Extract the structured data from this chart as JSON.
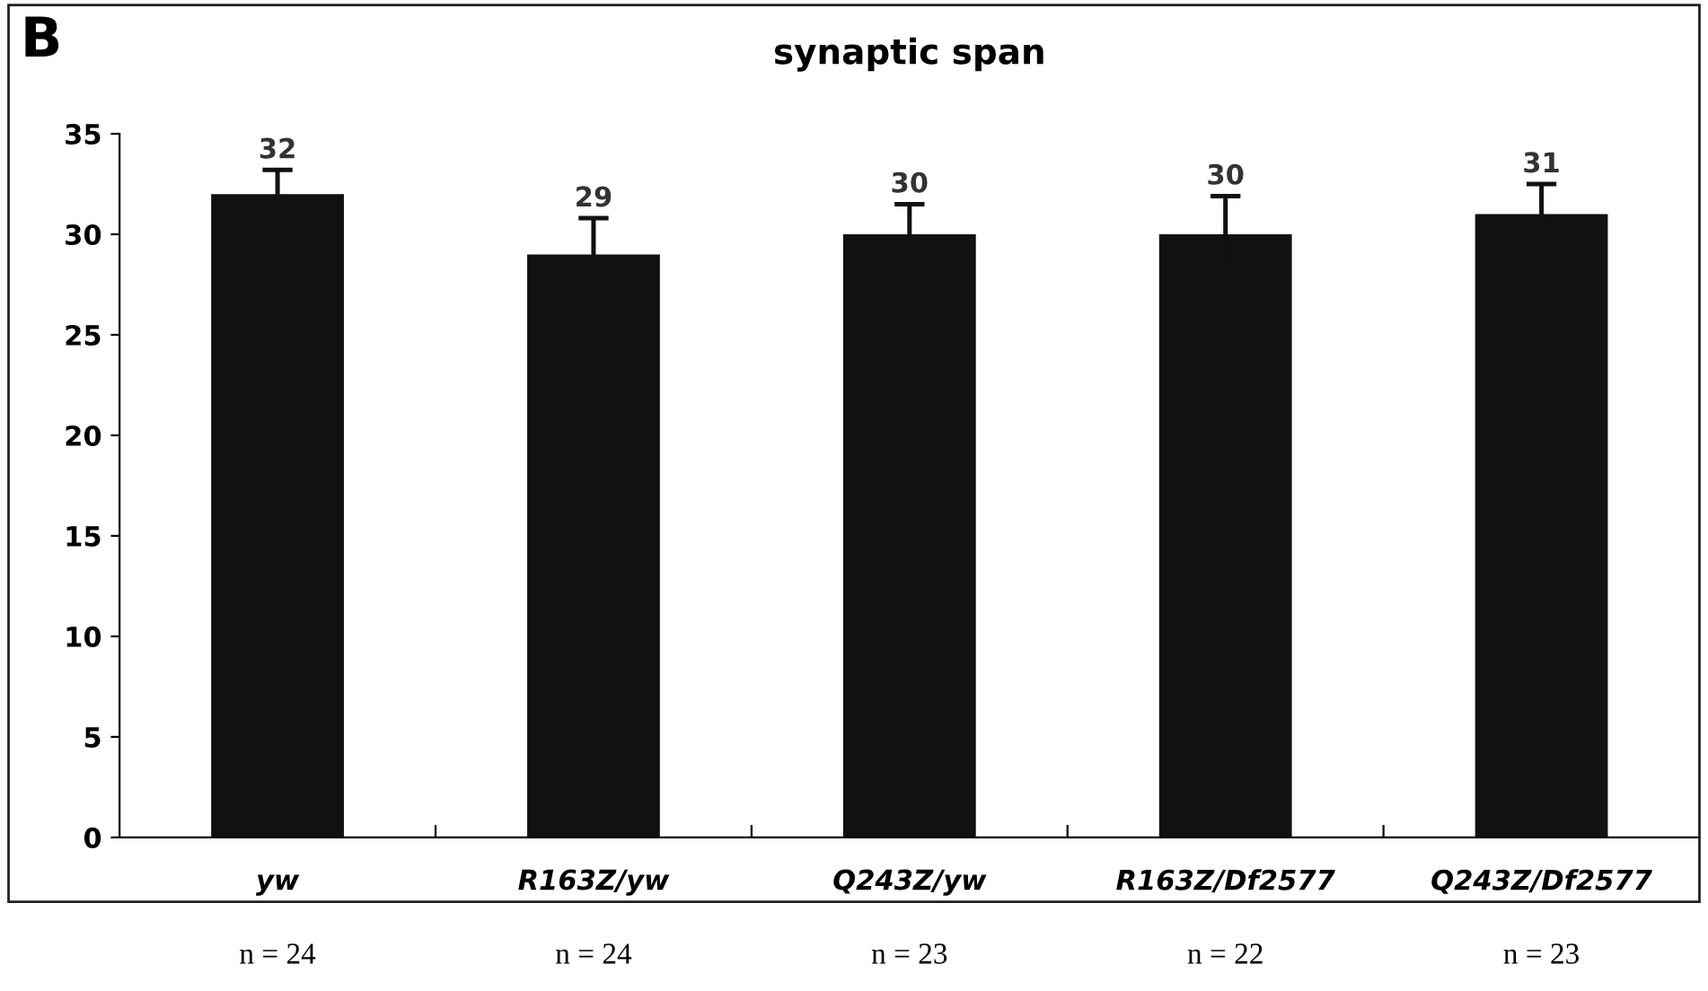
{
  "chart_data": {
    "type": "bar",
    "title": "synaptic span",
    "categories": [
      "yw",
      "R163Z/yw",
      "Q243Z/yw",
      "R163Z/Df2577",
      "Q243Z/Df2577"
    ],
    "values": [
      32,
      29,
      30,
      30,
      31
    ],
    "errors": [
      1.2,
      1.8,
      1.5,
      1.9,
      1.5
    ],
    "color": "#111111",
    "ylim": [
      0,
      35
    ],
    "yticks": [
      0,
      5,
      10,
      15,
      20,
      25,
      30,
      35
    ],
    "data_labels": true,
    "grid": false,
    "annotations": [
      "B",
      "n = 24",
      "n = 24",
      "n = 23",
      "n = 22",
      "n = 23"
    ]
  }
}
